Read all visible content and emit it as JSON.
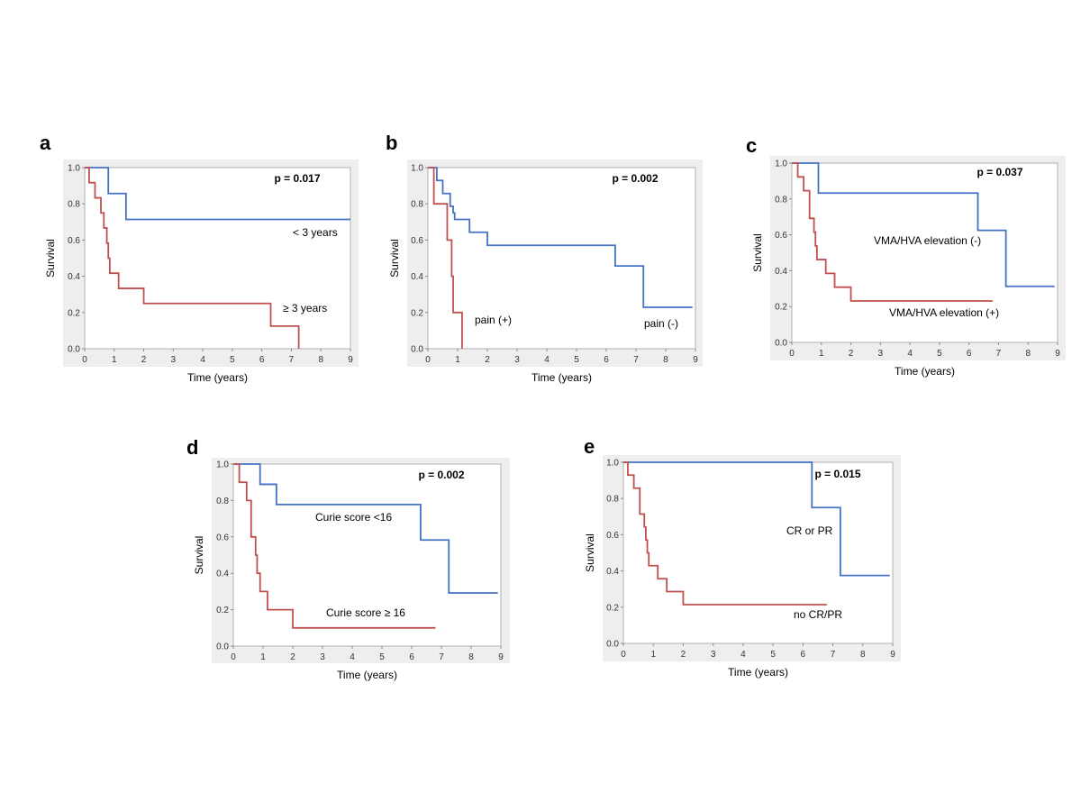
{
  "chart_data": [
    {
      "panel": "a",
      "type": "line",
      "subtype": "kaplan-meier step",
      "xlabel": "Time (years)",
      "ylabel": "Survival",
      "xlim": [
        0,
        9
      ],
      "ylim": [
        0,
        1
      ],
      "xticks": [
        0,
        1,
        2,
        3,
        4,
        5,
        6,
        7,
        8,
        9
      ],
      "yticks": [
        0.0,
        0.2,
        0.4,
        0.6,
        0.8,
        1.0
      ],
      "annotation": "p = 0.017",
      "series": [
        {
          "name": "< 3 years",
          "color": "#4472c4",
          "x": [
            0,
            0.8,
            1.4,
            9.0
          ],
          "y": [
            1.0,
            0.857,
            0.714,
            0.714
          ]
        },
        {
          "name": "≥ 3 years",
          "color": "#c0504d",
          "x": [
            0,
            0.15,
            0.35,
            0.55,
            0.65,
            0.75,
            0.8,
            0.85,
            1.15,
            2.0,
            6.3,
            7.25
          ],
          "y": [
            1.0,
            0.917,
            0.833,
            0.75,
            0.667,
            0.583,
            0.5,
            0.417,
            0.333,
            0.25,
            0.125,
            0.0
          ]
        }
      ]
    },
    {
      "panel": "b",
      "type": "line",
      "subtype": "kaplan-meier step",
      "xlabel": "Time (years)",
      "ylabel": "Survival",
      "xlim": [
        0,
        9
      ],
      "ylim": [
        0,
        1
      ],
      "xticks": [
        0,
        1,
        2,
        3,
        4,
        5,
        6,
        7,
        8,
        9
      ],
      "yticks": [
        0.0,
        0.2,
        0.4,
        0.6,
        0.8,
        1.0
      ],
      "annotation": "p = 0.002",
      "series": [
        {
          "name": "pain (-)",
          "color": "#4472c4",
          "x": [
            0,
            0.3,
            0.5,
            0.75,
            0.85,
            0.9,
            1.4,
            2.0,
            6.3,
            7.25,
            8.9
          ],
          "y": [
            1.0,
            0.929,
            0.857,
            0.786,
            0.75,
            0.714,
            0.643,
            0.571,
            0.457,
            0.229,
            0.229
          ]
        },
        {
          "name": "pain (+)",
          "color": "#c0504d",
          "x": [
            0,
            0.2,
            0.65,
            0.8,
            0.85,
            1.15
          ],
          "y": [
            1.0,
            0.8,
            0.6,
            0.4,
            0.2,
            0.0
          ]
        }
      ]
    },
    {
      "panel": "c",
      "type": "line",
      "subtype": "kaplan-meier step",
      "xlabel": "Time (years)",
      "ylabel": "Survival",
      "xlim": [
        0,
        9
      ],
      "ylim": [
        0,
        1
      ],
      "xticks": [
        0,
        1,
        2,
        3,
        4,
        5,
        6,
        7,
        8,
        9
      ],
      "yticks": [
        0.0,
        0.2,
        0.4,
        0.6,
        0.8,
        1.0
      ],
      "annotation": "p = 0.037",
      "series": [
        {
          "name": "VMA/HVA elevation (-)",
          "color": "#4472c4",
          "x": [
            0,
            0.9,
            6.3,
            7.25,
            8.9
          ],
          "y": [
            1.0,
            0.833,
            0.625,
            0.313,
            0.313
          ]
        },
        {
          "name": "VMA/HVA elevation (+)",
          "color": "#c0504d",
          "x": [
            0,
            0.2,
            0.4,
            0.6,
            0.75,
            0.8,
            0.85,
            0.9,
            1.15,
            1.45,
            2.0,
            6.8
          ],
          "y": [
            1.0,
            0.923,
            0.846,
            0.692,
            0.615,
            0.538,
            0.462,
            0.462,
            0.385,
            0.308,
            0.231,
            0.231
          ]
        }
      ]
    },
    {
      "panel": "d",
      "type": "line",
      "subtype": "kaplan-meier step",
      "xlabel": "Time (years)",
      "ylabel": "Survival",
      "xlim": [
        0,
        9
      ],
      "ylim": [
        0,
        1
      ],
      "xticks": [
        0,
        1,
        2,
        3,
        4,
        5,
        6,
        7,
        8,
        9
      ],
      "yticks": [
        0.0,
        0.2,
        0.4,
        0.6,
        0.8,
        1.0
      ],
      "annotation": "p = 0.002",
      "series": [
        {
          "name": "Curie score <16",
          "color": "#4472c4",
          "x": [
            0,
            0.9,
            1.45,
            6.3,
            7.25,
            8.9
          ],
          "y": [
            1.0,
            0.889,
            0.778,
            0.583,
            0.292,
            0.292
          ]
        },
        {
          "name": "Curie score ≥ 16",
          "color": "#c0504d",
          "x": [
            0,
            0.2,
            0.45,
            0.6,
            0.75,
            0.8,
            0.9,
            1.15,
            2.0,
            6.8
          ],
          "y": [
            1.0,
            0.9,
            0.8,
            0.6,
            0.5,
            0.4,
            0.3,
            0.2,
            0.1,
            0.1
          ]
        }
      ]
    },
    {
      "panel": "e",
      "type": "line",
      "subtype": "kaplan-meier step",
      "xlabel": "Time (years)",
      "ylabel": "Survival",
      "xlim": [
        0,
        9
      ],
      "ylim": [
        0,
        1
      ],
      "xticks": [
        0,
        1,
        2,
        3,
        4,
        5,
        6,
        7,
        8,
        9
      ],
      "yticks": [
        0.0,
        0.2,
        0.4,
        0.6,
        0.8,
        1.0
      ],
      "annotation": "p = 0.015",
      "series": [
        {
          "name": "CR or PR",
          "color": "#4472c4",
          "x": [
            0,
            6.3,
            7.25,
            8.9
          ],
          "y": [
            1.0,
            0.75,
            0.375,
            0.375
          ]
        },
        {
          "name": "no CR/PR",
          "color": "#c0504d",
          "x": [
            0,
            0.15,
            0.35,
            0.55,
            0.7,
            0.75,
            0.8,
            0.85,
            1.15,
            1.45,
            2.0,
            6.8
          ],
          "y": [
            1.0,
            0.929,
            0.857,
            0.714,
            0.643,
            0.571,
            0.5,
            0.429,
            0.357,
            0.286,
            0.214,
            0.214
          ]
        }
      ]
    }
  ]
}
